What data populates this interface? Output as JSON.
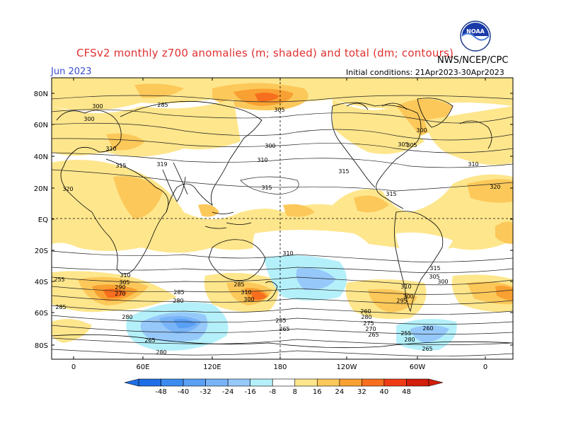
{
  "header": {
    "title": "CFSv2 monthly z700 anomalies (m; shaded) and total (dm; contours)",
    "month": "Jun 2023",
    "initial_conditions": "Initial conditions: 21Apr2023-30Apr2023",
    "agency": "NWS/NCEP/CPC",
    "logo_text": "NOAA"
  },
  "map": {
    "lat_labels": [
      "80N",
      "60N",
      "40N",
      "20N",
      "EQ",
      "20S",
      "40S",
      "60S",
      "80S"
    ],
    "lon_labels": [
      "0",
      "60E",
      "120E",
      "180",
      "120W",
      "60W",
      "0"
    ],
    "contour_labels": [
      "300",
      "285",
      "305",
      "300",
      "310",
      "300",
      "305",
      "310",
      "315",
      "319",
      "315",
      "320",
      "315",
      "315",
      "310",
      "305",
      "300",
      "310",
      "315",
      "320",
      "310",
      "305",
      "300",
      "310",
      "300",
      "295",
      "290",
      "285",
      "305",
      "310",
      "300",
      "285",
      "280",
      "270",
      "285",
      "280",
      "265",
      "280",
      "265",
      "255",
      "260",
      "280",
      "275",
      "270",
      "265",
      "260",
      "255",
      "280",
      "265",
      "255"
    ]
  },
  "colorbar": {
    "tick_labels": [
      "-48",
      "-40",
      "-32",
      "-24",
      "-16",
      "-8",
      "8",
      "16",
      "24",
      "32",
      "40",
      "48"
    ],
    "colors": [
      "#1e6ee6",
      "#3c8cf0",
      "#5aa0f5",
      "#78b4f7",
      "#96c8fa",
      "#b4f0fa",
      "#ffffff",
      "#fee68c",
      "#fcc85a",
      "#f9a032",
      "#f66e1e",
      "#f03c14",
      "#d21e0a"
    ]
  }
}
